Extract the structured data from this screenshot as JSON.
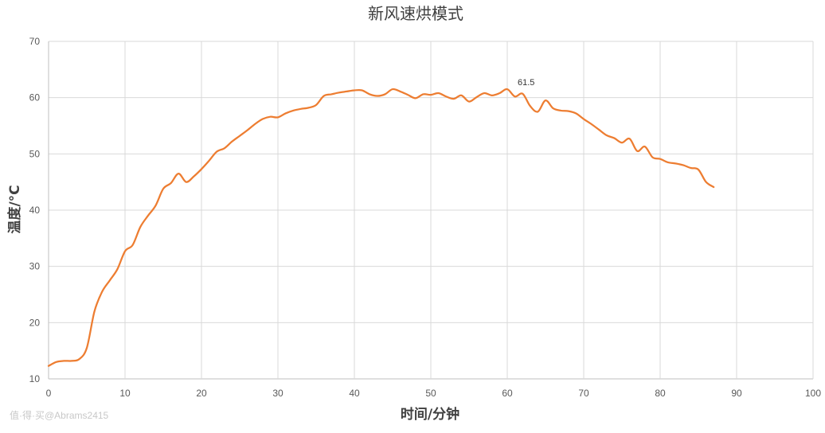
{
  "chart_data": {
    "type": "line",
    "title": "新风速烘模式",
    "xlabel": "时间/分钟",
    "ylabel": "温度/°C",
    "xlim": [
      0,
      100
    ],
    "ylim": [
      10,
      70
    ],
    "x_ticks": [
      "0",
      "10",
      "20",
      "30",
      "40",
      "50",
      "60",
      "70",
      "80",
      "90",
      "100"
    ],
    "y_ticks": [
      "10",
      "20",
      "30",
      "40",
      "50",
      "60",
      "70"
    ],
    "grid": true,
    "legend": "none",
    "series_color": "#ED7D31",
    "series": [
      {
        "x": [
          0,
          1,
          2,
          3,
          4,
          5,
          6,
          7,
          8,
          9,
          10,
          11,
          12,
          13,
          14,
          15,
          16,
          17,
          18,
          19,
          20,
          21,
          22,
          23,
          24,
          25,
          26,
          27,
          28,
          29,
          30,
          31,
          32,
          33,
          34,
          35,
          36,
          37,
          38,
          39,
          40,
          41,
          42,
          43,
          44,
          45,
          46,
          47,
          48,
          49,
          50,
          51,
          52,
          53,
          54,
          55,
          56,
          57,
          58,
          59,
          60,
          61,
          62,
          63,
          64,
          65,
          66,
          67,
          68,
          69,
          70,
          71,
          72,
          73,
          74,
          75,
          76,
          77,
          78,
          79,
          80,
          81,
          82,
          83,
          84,
          85,
          86,
          87
        ],
        "values": [
          12.3,
          13.0,
          13.2,
          13.2,
          13.5,
          15.5,
          22.0,
          25.5,
          27.5,
          29.5,
          32.7,
          33.8,
          37.0,
          39.0,
          40.8,
          43.8,
          44.8,
          46.5,
          45.0,
          46.0,
          47.3,
          48.8,
          50.4,
          51.0,
          52.2,
          53.2,
          54.2,
          55.3,
          56.2,
          56.6,
          56.5,
          57.2,
          57.7,
          58.0,
          58.2,
          58.7,
          60.3,
          60.6,
          60.9,
          61.1,
          61.3,
          61.3,
          60.6,
          60.3,
          60.6,
          61.5,
          61.1,
          60.5,
          59.9,
          60.6,
          60.5,
          60.8,
          60.2,
          59.8,
          60.4,
          59.3,
          60.1,
          60.8,
          60.4,
          60.8,
          61.5,
          60.2,
          60.7,
          58.5,
          57.5,
          59.5,
          58.1,
          57.7,
          57.6,
          57.2,
          56.2,
          55.3,
          54.3,
          53.3,
          52.8,
          52.0,
          52.7,
          50.5,
          51.3,
          49.4,
          49.1,
          48.5,
          48.3,
          48.0,
          47.5,
          47.2,
          45.0,
          44.1
        ]
      }
    ],
    "annotations": [
      {
        "x": 60,
        "y": 61.5,
        "text": "61.5"
      }
    ]
  },
  "watermark": "值·得·买@Abrams2415"
}
